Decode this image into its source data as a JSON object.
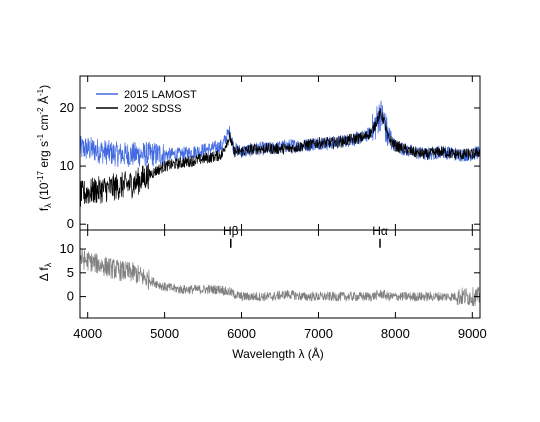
{
  "chart_data": [
    {
      "type": "line",
      "panel": "top",
      "ylabel_main": "f",
      "ylabel_sub": "λ",
      "ylabel_unit": "(10",
      "ylabel_exp1": "-17",
      "ylabel_unit2": " erg s",
      "ylabel_exp2": "-1",
      "ylabel_unit3": " cm",
      "ylabel_exp3": "-2",
      "ylabel_unit4": " Å",
      "ylabel_exp4": "-1",
      "ylabel_close": ")",
      "xlim": [
        3900,
        9100
      ],
      "ylim": [
        -1,
        25.5
      ],
      "yticks": [
        0,
        10,
        20
      ],
      "ytick_labels": [
        "0",
        "10",
        "20"
      ],
      "legend_position": "top-left",
      "series": [
        {
          "name": "2015 LAMOST",
          "color": "#4169e1",
          "x": [
            3900,
            4000,
            4200,
            4400,
            4600,
            4800,
            5000,
            5200,
            5400,
            5600,
            5750,
            5800,
            5850,
            5900,
            6000,
            6200,
            6400,
            6600,
            6800,
            7000,
            7200,
            7400,
            7600,
            7700,
            7800,
            7850,
            7900,
            8000,
            8200,
            8400,
            8600,
            8800,
            9000,
            9100
          ],
          "y": [
            13,
            13,
            12.5,
            12,
            12,
            12,
            12,
            12,
            12.5,
            13,
            13.5,
            15,
            16,
            13,
            12.5,
            13,
            13,
            13.5,
            13.5,
            14,
            14,
            14.5,
            15,
            16,
            19,
            18,
            15,
            13.5,
            12.5,
            12,
            12.5,
            12,
            12,
            12.5
          ]
        },
        {
          "name": "2002 SDSS",
          "color": "#000000",
          "x": [
            3900,
            4000,
            4200,
            4400,
            4600,
            4800,
            5000,
            5200,
            5400,
            5600,
            5750,
            5800,
            5850,
            5900,
            6000,
            6200,
            6400,
            6600,
            6800,
            7000,
            7200,
            7400,
            7600,
            7700,
            7800,
            7850,
            7900,
            8000,
            8200,
            8400,
            8600,
            8800,
            9000,
            9100
          ],
          "y": [
            5,
            5.5,
            6,
            6.5,
            7,
            8.5,
            10,
            10.5,
            11,
            11.5,
            12,
            14,
            15,
            12.5,
            12.5,
            13,
            13,
            13,
            13.5,
            14,
            14,
            14.5,
            15,
            16,
            19,
            18,
            15,
            13.5,
            12.5,
            12,
            12.5,
            12,
            12,
            12.5
          ]
        }
      ]
    },
    {
      "type": "line",
      "panel": "bottom",
      "ylabel_main": "Δ f",
      "ylabel_sub": "λ",
      "xlabel": "Wavelength λ (Å)",
      "xlim": [
        3900,
        9100
      ],
      "ylim": [
        -4.5,
        14
      ],
      "xticks": [
        4000,
        5000,
        6000,
        7000,
        8000,
        9000
      ],
      "xtick_labels": [
        "4000",
        "5000",
        "6000",
        "7000",
        "8000",
        "9000"
      ],
      "yticks": [
        0,
        5,
        10
      ],
      "ytick_labels": [
        "0",
        "5",
        "10"
      ],
      "annotations": [
        {
          "text": "Hβ",
          "x": 5860,
          "y": 13
        },
        {
          "text": "Hα",
          "x": 7800,
          "y": 13
        }
      ],
      "series": [
        {
          "color": "#808080",
          "x": [
            3900,
            4000,
            4200,
            4400,
            4600,
            4800,
            5000,
            5200,
            5400,
            5600,
            5750,
            5800,
            5850,
            5900,
            6000,
            6200,
            6400,
            6600,
            6800,
            7000,
            7200,
            7400,
            7600,
            7700,
            7800,
            7850,
            7900,
            8000,
            8200,
            8400,
            8600,
            8800,
            9000,
            9100
          ],
          "y": [
            8,
            7.5,
            6.5,
            5.5,
            5,
            3.5,
            2,
            1.5,
            1.5,
            1.5,
            1.5,
            1,
            1,
            0.5,
            0,
            0,
            0,
            0.5,
            0,
            0,
            0,
            0,
            0,
            0,
            0.5,
            0.5,
            0,
            0,
            0,
            0,
            0,
            0,
            0,
            0
          ]
        }
      ]
    }
  ]
}
